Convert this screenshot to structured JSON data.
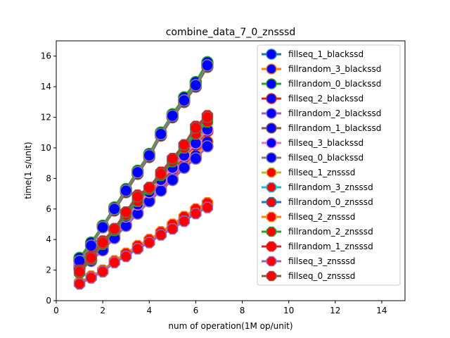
{
  "chart_data": {
    "type": "line",
    "title": "combine_data_7_0_znsssd",
    "xlabel": "num of operation(1M op/unit)",
    "ylabel": "time(1 s/unit)",
    "xlim": [
      0,
      15
    ],
    "ylim": [
      0,
      17
    ],
    "xticks": [
      "0",
      "2",
      "4",
      "6",
      "8",
      "10",
      "12",
      "14"
    ],
    "yticks": [
      "0",
      "2",
      "4",
      "6",
      "8",
      "10",
      "12",
      "14",
      "16"
    ],
    "grid": false,
    "legend_position": "top-right",
    "x": [
      1,
      1.5,
      2,
      2.5,
      3,
      3.5,
      4,
      4.5,
      5,
      5.5,
      6,
      6.5
    ],
    "series": [
      {
        "name": "fillseq_1_blackssd",
        "line_color": "#1f77b4",
        "marker": "circle",
        "marker_face": "#0000ff",
        "marker_edge": "#1f77b4",
        "values": [
          2.7,
          3.7,
          4.9,
          6.0,
          7.2,
          8.4,
          9.5,
          10.9,
          12.1,
          13.1,
          14.2,
          15.5
        ]
      },
      {
        "name": "fillrandom_3_blackssd",
        "line_color": "#ff7f0e",
        "marker": "circle",
        "marker_face": "#0000ff",
        "marker_edge": "#ff7f0e",
        "values": [
          2.2,
          2.7,
          3.5,
          4.3,
          5.0,
          5.8,
          6.6,
          7.4,
          8.0,
          8.8,
          9.5,
          10.4
        ]
      },
      {
        "name": "fillrandom_0_blackssd",
        "line_color": "#2ca02c",
        "marker": "circle",
        "marker_face": "#0000ff",
        "marker_edge": "#2ca02c",
        "values": [
          2.8,
          3.8,
          4.9,
          6.1,
          7.3,
          8.5,
          9.6,
          11.0,
          12.2,
          13.3,
          14.3,
          15.6
        ]
      },
      {
        "name": "fillseq_2_blackssd",
        "line_color": "#d62728",
        "marker": "circle",
        "marker_face": "#0000ff",
        "marker_edge": "#d62728",
        "values": [
          2.3,
          2.9,
          3.7,
          4.6,
          5.4,
          6.2,
          7.0,
          7.8,
          8.6,
          9.4,
          10.2,
          11.1
        ]
      },
      {
        "name": "fillrandom_2_blackssd",
        "line_color": "#9467bd",
        "marker": "circle",
        "marker_face": "#0000ff",
        "marker_edge": "#9467bd",
        "values": [
          2.1,
          2.6,
          3.3,
          4.1,
          4.9,
          5.7,
          6.5,
          7.2,
          7.9,
          8.7,
          9.3,
          10.1
        ]
      },
      {
        "name": "fillrandom_1_blackssd",
        "line_color": "#8c564b",
        "marker": "circle",
        "marker_face": "#0000ff",
        "marker_edge": "#8c564b",
        "values": [
          2.6,
          3.6,
          4.8,
          5.9,
          7.1,
          8.3,
          9.4,
          10.8,
          12.0,
          13.0,
          14.0,
          15.3
        ]
      },
      {
        "name": "fillseq_3_blackssd",
        "line_color": "#e377c2",
        "marker": "circle",
        "marker_face": "#0000ff",
        "marker_edge": "#e377c2",
        "values": [
          2.4,
          3.0,
          3.8,
          4.7,
          5.5,
          6.3,
          7.1,
          7.9,
          8.7,
          9.5,
          10.3,
          11.2
        ]
      },
      {
        "name": "fillseq_0_blackssd",
        "line_color": "#7f7f7f",
        "marker": "circle",
        "marker_face": "#0000ff",
        "marker_edge": "#7f7f7f",
        "values": [
          2.6,
          3.6,
          4.8,
          6.0,
          7.2,
          8.4,
          9.5,
          10.9,
          12.1,
          13.1,
          14.1,
          15.4
        ]
      },
      {
        "name": "fillseq_1_znsssd",
        "line_color": "#bcbd22",
        "marker": "octagon",
        "marker_face": "#ff0000",
        "marker_edge": "#bcbd22",
        "values": [
          1.2,
          1.6,
          2.0,
          2.6,
          3.1,
          3.5,
          3.9,
          4.5,
          4.9,
          5.4,
          5.9,
          6.4
        ]
      },
      {
        "name": "fillrandom_3_znsssd",
        "line_color": "#17becf",
        "marker": "octagon",
        "marker_face": "#ff0000",
        "marker_edge": "#17becf",
        "values": [
          1.9,
          2.8,
          3.8,
          4.7,
          5.7,
          6.7,
          7.4,
          8.3,
          9.2,
          10.1,
          11.1,
          11.9
        ]
      },
      {
        "name": "fillrandom_0_znsssd",
        "line_color": "#1f77b4",
        "marker": "octagon",
        "marker_face": "#ff0000",
        "marker_edge": "#1f77b4",
        "values": [
          1.1,
          1.5,
          1.9,
          2.5,
          3.0,
          3.4,
          3.8,
          4.4,
          4.8,
          5.3,
          5.8,
          6.2
        ]
      },
      {
        "name": "fillseq_2_znsssd",
        "line_color": "#ff7f0e",
        "marker": "octagon",
        "marker_face": "#ff0000",
        "marker_edge": "#ff7f0e",
        "values": [
          1.2,
          1.6,
          2.0,
          2.6,
          3.1,
          3.6,
          4.0,
          4.5,
          5.0,
          5.5,
          6.0,
          6.4
        ]
      },
      {
        "name": "fillrandom_2_znsssd",
        "line_color": "#2ca02c",
        "marker": "octagon",
        "marker_face": "#ff0000",
        "marker_edge": "#2ca02c",
        "values": [
          1.8,
          2.7,
          3.7,
          4.6,
          5.6,
          6.5,
          7.3,
          8.2,
          9.1,
          10.0,
          10.9,
          11.7
        ]
      },
      {
        "name": "fillrandom_1_znsssd",
        "line_color": "#d62728",
        "marker": "octagon",
        "marker_face": "#ff0000",
        "marker_edge": "#d62728",
        "values": [
          2.0,
          2.9,
          3.9,
          4.7,
          5.8,
          6.9,
          7.4,
          8.4,
          9.3,
          10.2,
          11.4,
          12.1
        ]
      },
      {
        "name": "fillseq_3_znsssd",
        "line_color": "#9467bd",
        "marker": "octagon",
        "marker_face": "#ff0000",
        "marker_edge": "#9467bd",
        "values": [
          1.1,
          1.5,
          1.9,
          2.5,
          2.9,
          3.4,
          3.8,
          4.3,
          4.7,
          5.2,
          5.7,
          6.1
        ]
      },
      {
        "name": "fillseq_0_znsssd",
        "line_color": "#8c564b",
        "marker": "octagon",
        "marker_face": "#ff0000",
        "marker_edge": "#8c564b",
        "values": [
          1.9,
          2.8,
          3.8,
          4.7,
          5.8,
          6.8,
          7.4,
          8.3,
          9.3,
          10.2,
          11.3,
          12.0
        ]
      }
    ]
  }
}
